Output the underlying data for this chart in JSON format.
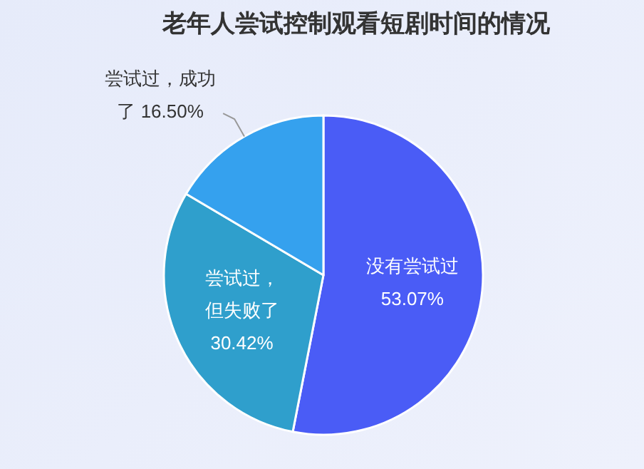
{
  "chart_data": {
    "type": "pie",
    "title": "老年人尝试控制观看短剧时间的情况",
    "categories": [
      "没有尝试过",
      "尝试过，但失败了",
      "尝试过，成功了"
    ],
    "values": [
      53.07,
      30.42,
      16.5
    ],
    "colors": [
      "#4a5cf6",
      "#2f9fcc",
      "#35a1ee"
    ],
    "value_labels": [
      "53.07%",
      "30.42%",
      "16.50%"
    ]
  }
}
